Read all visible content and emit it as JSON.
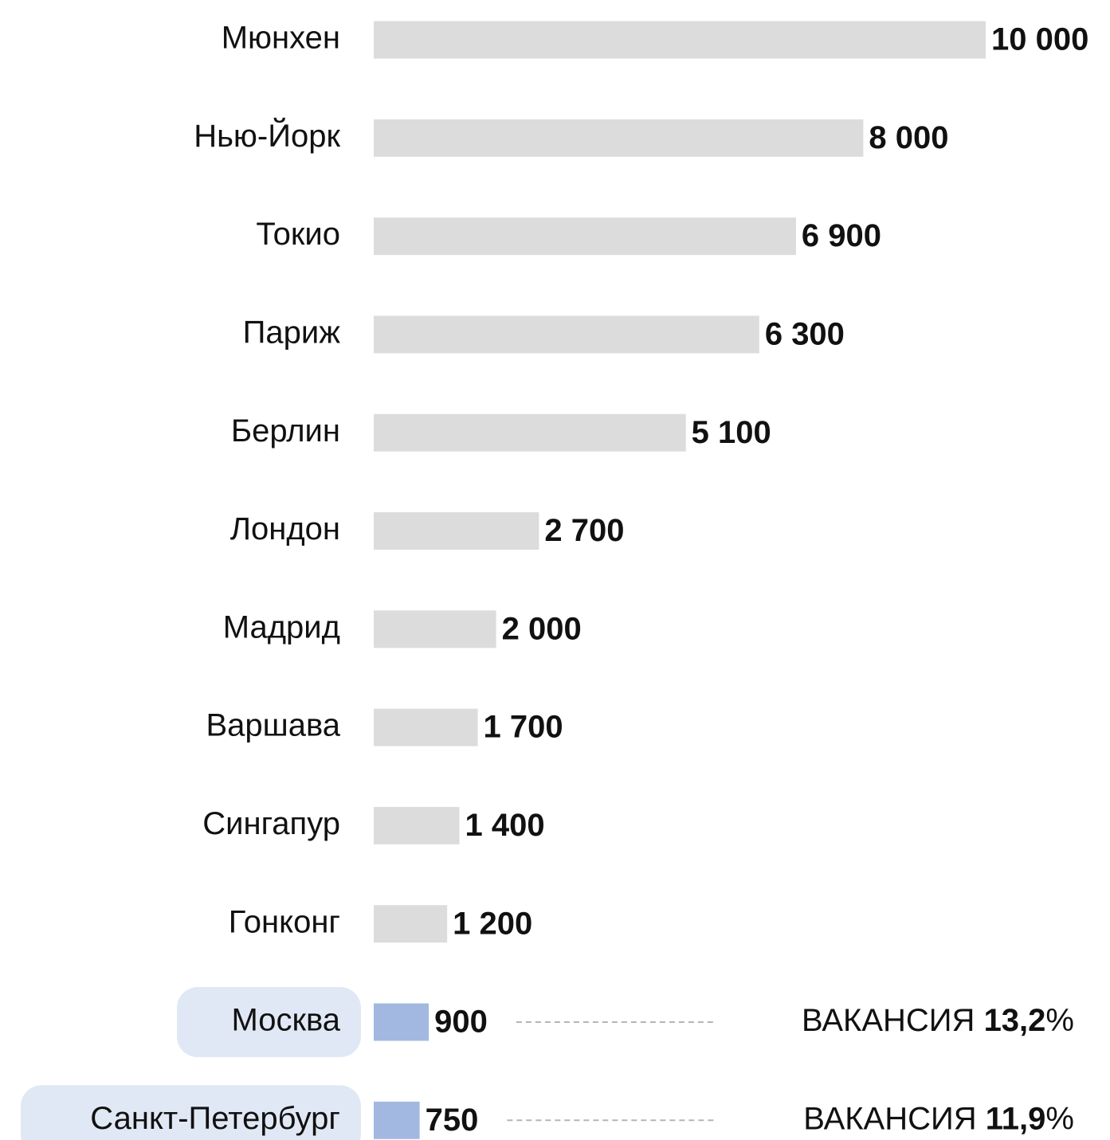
{
  "chart_data": {
    "type": "bar",
    "orientation": "horizontal",
    "categories": [
      "Мюнхен",
      "Нью-Йорк",
      "Токио",
      "Париж",
      "Берлин",
      "Лондон",
      "Мадрид",
      "Варшава",
      "Сингапур",
      "Гонконг",
      "Москва",
      "Санкт-Петербург"
    ],
    "values": [
      10000,
      8000,
      6900,
      6300,
      5100,
      2700,
      2000,
      1700,
      1400,
      1200,
      900,
      750
    ],
    "value_labels": [
      "10 000",
      "8 000",
      "6 900",
      "6 300",
      "5 100",
      "2 700",
      "2 000",
      "1 700",
      "1 400",
      "1 200",
      "900",
      "750"
    ],
    "colors": [
      "#dcdcdc",
      "#dcdcdc",
      "#dcdcdc",
      "#dcdcdc",
      "#dcdcdc",
      "#dcdcdc",
      "#dcdcdc",
      "#dcdcdc",
      "#dcdcdc",
      "#dcdcdc",
      "#a2b8e0",
      "#a2b8e0"
    ],
    "xlim": [
      0,
      10000
    ],
    "annotations": [
      {
        "label": "ВАКАНСИЯ",
        "value": "13,2",
        "unit": "%"
      },
      {
        "label": "ВАКАНСИЯ",
        "value": "11,9",
        "unit": "%"
      }
    ]
  }
}
